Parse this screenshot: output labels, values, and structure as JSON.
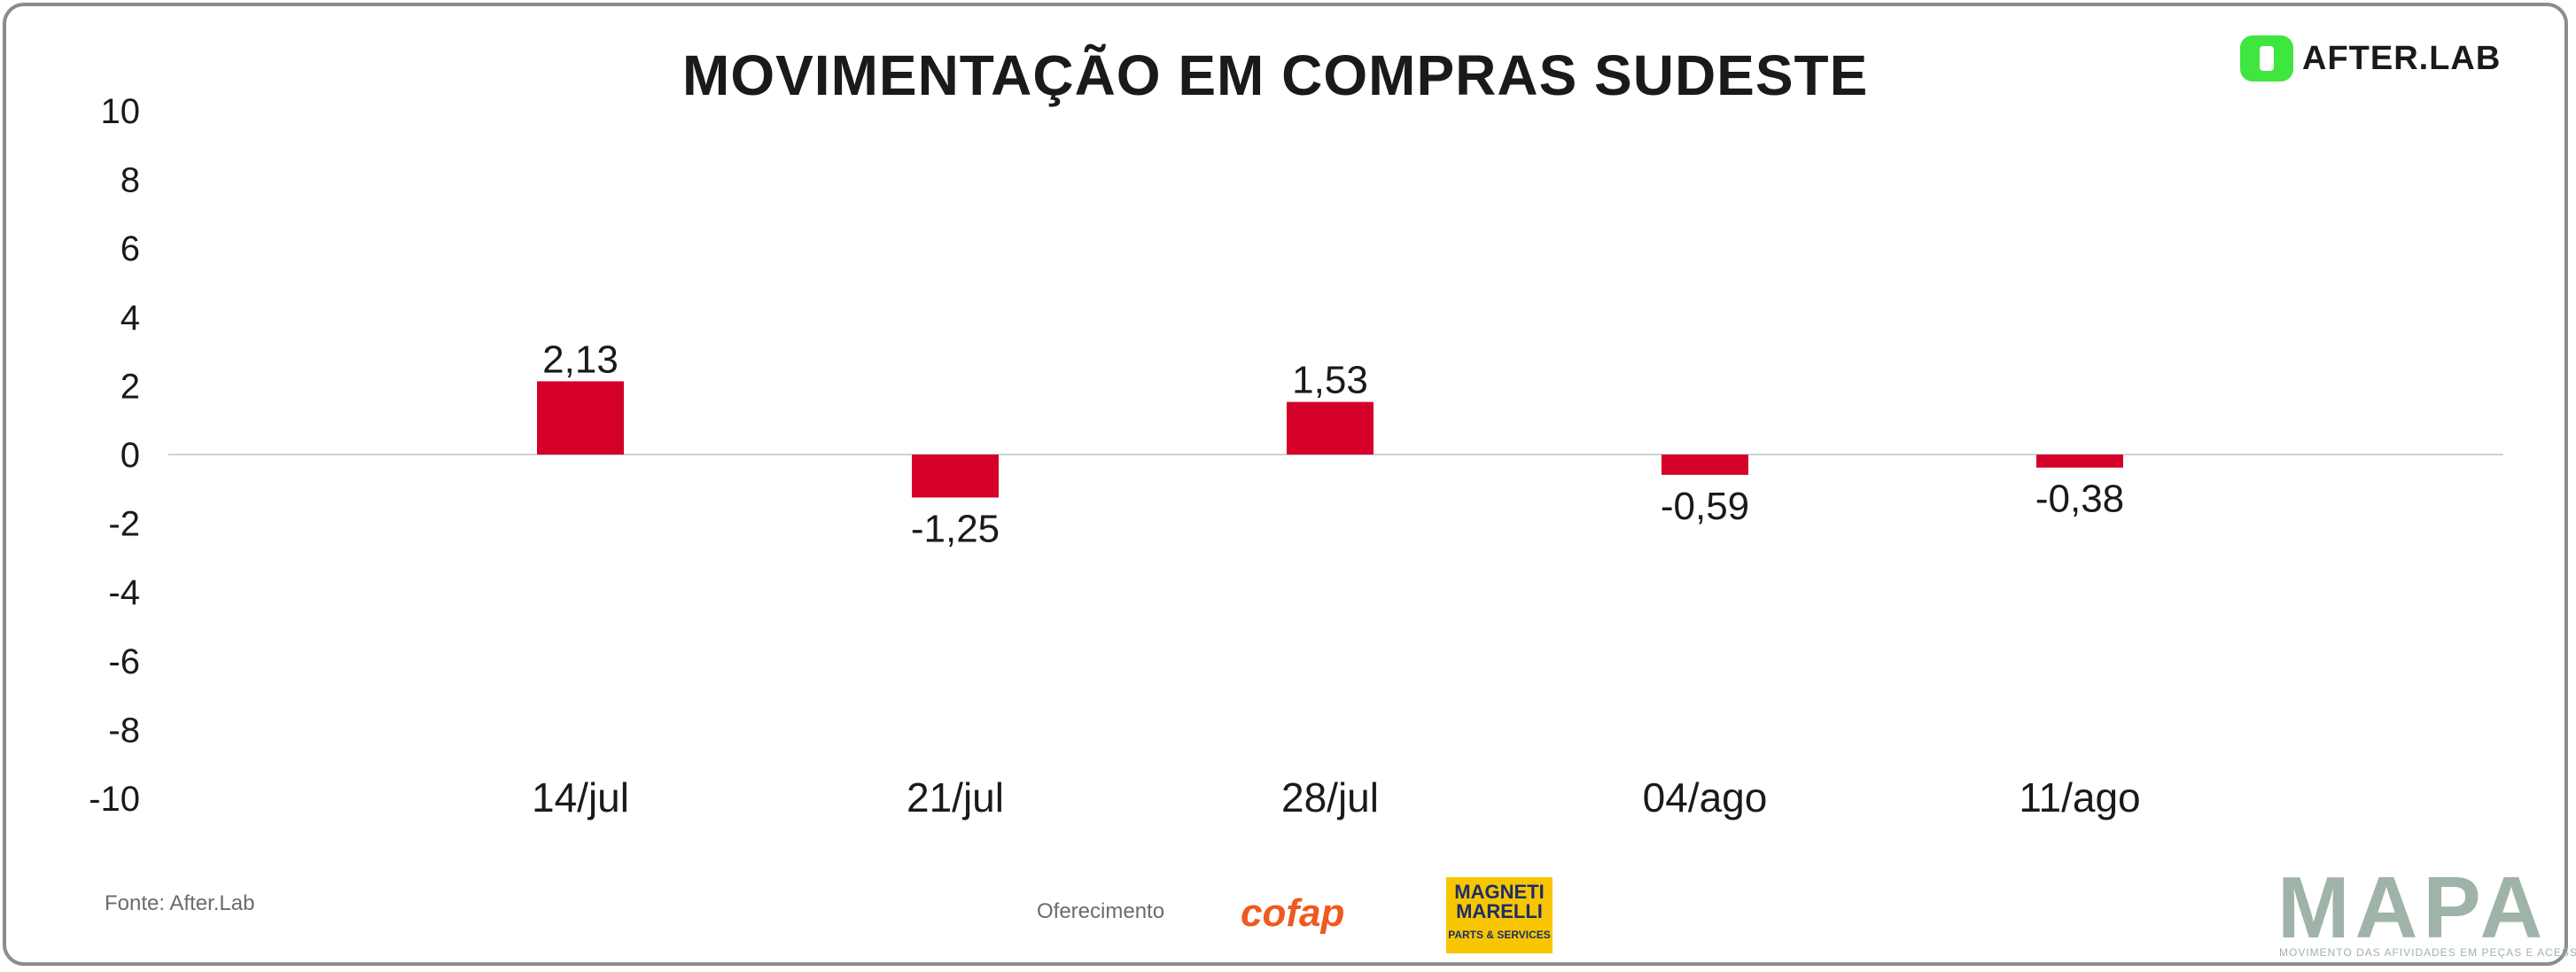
{
  "header": {
    "title": "MOVIMENTAÇÃO EM COMPRAS SUDESTE",
    "logo_text": "AFTER.LAB"
  },
  "footer": {
    "source": "Fonte: After.Lab",
    "sponsor_label": "Oferecimento",
    "sponsor_1": "cofap",
    "sponsor_2_line1": "MAGNETI",
    "sponsor_2_line2": "MARELLI",
    "sponsor_2_line3": "PARTS & SERVICES",
    "brand": "MAPA",
    "brand_tagline": "MOVIMENTO DAS AFIVIDADES EM PEÇAS E ACESSÓRIOS"
  },
  "colors": {
    "bar": "#d4002a",
    "zero_line": "#c7d3d6",
    "axis_text": "#1a1a1a",
    "logo_green": "#3fe63f"
  },
  "chart_data": {
    "type": "bar",
    "title": "MOVIMENTAÇÃO EM COMPRAS SUDESTE",
    "categories": [
      "14/jul",
      "21/jul",
      "28/jul",
      "04/ago",
      "11/ago"
    ],
    "values": [
      2.13,
      -1.25,
      1.53,
      -0.59,
      -0.38
    ],
    "value_labels": [
      "2,13",
      "-1,25",
      "1,53",
      "-0,59",
      "-0,38"
    ],
    "ylim": [
      -10,
      10
    ],
    "yticks": [
      10,
      8,
      6,
      4,
      2,
      0,
      -2,
      -4,
      -6,
      -8,
      -10
    ],
    "grid": false,
    "legend": "none"
  }
}
